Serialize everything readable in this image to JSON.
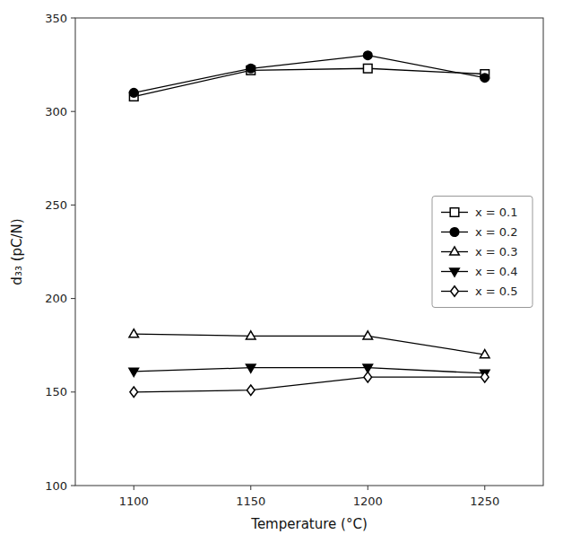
{
  "chart_data": {
    "type": "line",
    "xlabel": "Temperature (°C)",
    "ylabel": "d₃₃ (pC/N)",
    "x": [
      1100,
      1150,
      1200,
      1250
    ],
    "series": [
      {
        "name": "x = 0.1",
        "color": "black",
        "marker": "square-open",
        "values": [
          308,
          322,
          323,
          320
        ]
      },
      {
        "name": "x = 0.2",
        "color": "black",
        "marker": "circle",
        "values": [
          310,
          323,
          330,
          318
        ]
      },
      {
        "name": "x = 0.3",
        "color": "black",
        "marker": "triangle-up-open",
        "values": [
          181,
          180,
          180,
          170
        ]
      },
      {
        "name": "x = 0.4",
        "color": "black",
        "marker": "triangle-down",
        "values": [
          161,
          163,
          163,
          160
        ]
      },
      {
        "name": "x = 0.5",
        "color": "black",
        "marker": "diamond-open",
        "values": [
          150,
          151,
          158,
          158
        ]
      }
    ],
    "xlim": [
      1075,
      1275
    ],
    "ylim": [
      100,
      350
    ],
    "xticks": [
      1100,
      1150,
      1200,
      1250
    ],
    "yticks": [
      100,
      150,
      200,
      250,
      300,
      350
    ],
    "grid": false,
    "legend": "center right"
  }
}
